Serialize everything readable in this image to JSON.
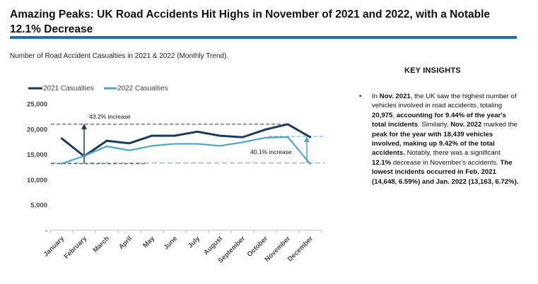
{
  "header": {
    "title": "Amazing Peaks: UK Road Accidents Hit Highs in November of 2021 and 2022, with a Notable 12.1% Decrease",
    "subtitle": "Number of Road Accident Casualties in 2021 & 2022 (Monthly Trend)."
  },
  "insights": {
    "heading": "KEY INSIGHTS",
    "bullet": "•",
    "segments": [
      {
        "text": "In ",
        "bold": false
      },
      {
        "text": "Nov. 2021",
        "bold": true
      },
      {
        "text": ", the UK saw the highest number of vehicles involved in road accidents, totaling ",
        "bold": false
      },
      {
        "text": "20,975",
        "bold": true
      },
      {
        "text": ", ",
        "bold": false
      },
      {
        "text": "accounting for 9.44% of the year's total incidents",
        "bold": true
      },
      {
        "text": ". Similarly, ",
        "bold": false
      },
      {
        "text": "Nov. 2022",
        "bold": true
      },
      {
        "text": " marked the ",
        "bold": false
      },
      {
        "text": "peak for the year with 18,439 vehicles involved, making up 9.42% of the total accidents.",
        "bold": true
      },
      {
        "text": " Notably, there was a significant ",
        "bold": false
      },
      {
        "text": "12.1%",
        "bold": true
      },
      {
        "text": " decrease in November's accidents. ",
        "bold": false
      },
      {
        "text": "The lowest incidents occurred in Feb. 2021 (14,648, 6.59%) and Jan. 2022 (13,163, 6.72%).",
        "bold": true
      }
    ]
  },
  "chart_data": {
    "type": "line",
    "x": [
      "January",
      "February",
      "March",
      "April",
      "May",
      "June",
      "July",
      "August",
      "September",
      "October",
      "November",
      "December"
    ],
    "ylim": [
      0,
      25000
    ],
    "yticks": [
      {
        "value": 25000,
        "label": "25,000"
      },
      {
        "value": 20000,
        "label": "20,000"
      },
      {
        "value": 15000,
        "label": "15,000"
      },
      {
        "value": 10000,
        "label": "10,000"
      },
      {
        "value": 5000,
        "label": "5,000"
      },
      {
        "value": 0,
        "label": "-"
      }
    ],
    "legend_position": "top-left",
    "grid": false,
    "series": [
      {
        "name": "2021 Casualties",
        "color": "#1b3a5c",
        "values": [
          18200,
          14648,
          17700,
          17200,
          18700,
          18700,
          19500,
          18700,
          18400,
          19900,
          20975,
          18400
        ]
      },
      {
        "name": "2022 Casualties",
        "color": "#4fa3d1",
        "values": [
          13163,
          14700,
          16600,
          15800,
          16700,
          17100,
          17100,
          16700,
          17400,
          18300,
          18439,
          13100
        ]
      }
    ],
    "annotations": [
      {
        "label": "43.2% increase",
        "from_value": 14648,
        "to_value": 20975,
        "month_index": 1
      },
      {
        "label": "40.1% increase",
        "from_value": 13163,
        "to_value": 18439,
        "month_index": 11
      }
    ]
  }
}
